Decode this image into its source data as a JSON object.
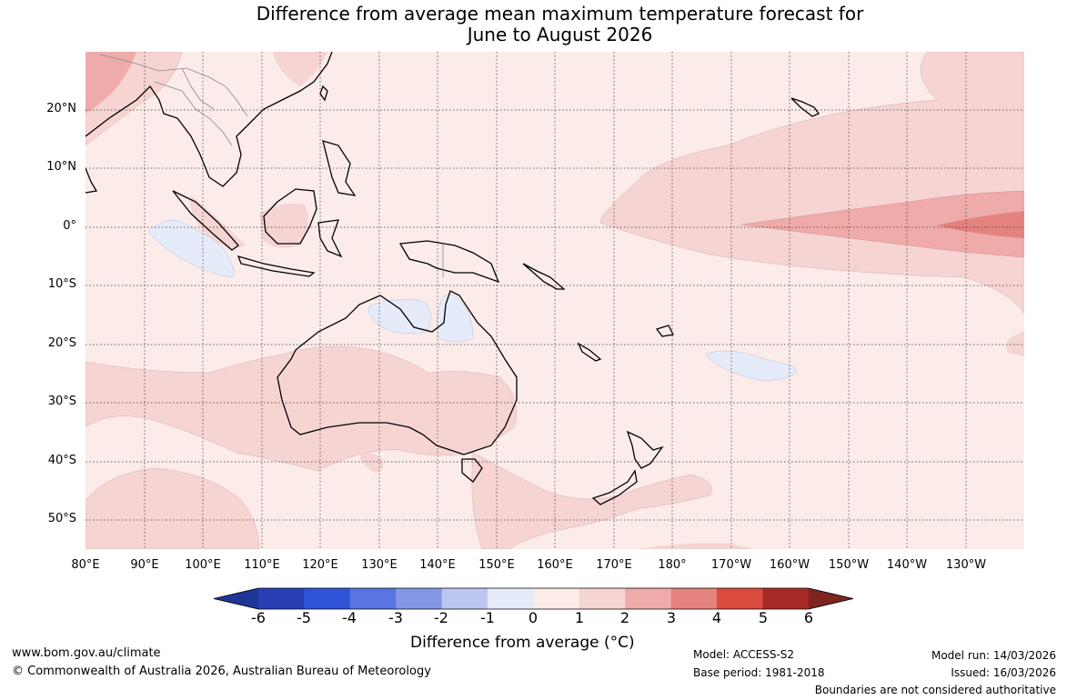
{
  "title": {
    "line1": "Difference from average mean maximum temperature forecast for",
    "line2": "June to August 2026"
  },
  "map": {
    "lat_labels": [
      "20°N",
      "10°N",
      "0°",
      "10°S",
      "20°S",
      "30°S",
      "40°S",
      "50°S"
    ],
    "lon_labels": [
      "80°E",
      "90°E",
      "100°E",
      "110°E",
      "120°E",
      "130°E",
      "140°E",
      "150°E",
      "160°E",
      "170°E",
      "180°",
      "170°W",
      "160°W",
      "150°W",
      "140°W",
      "130°W"
    ],
    "background_color": "#fbebe9"
  },
  "colorbar": {
    "ticks": [
      "-6",
      "-5",
      "-4",
      "-3",
      "-2",
      "-1",
      "0",
      "1",
      "2",
      "3",
      "4",
      "5",
      "6"
    ],
    "colors": [
      "#1f3697",
      "#283fb4",
      "#2f54d8",
      "#5a74e0",
      "#8496e6",
      "#bcc6f0",
      "#e6ebfa",
      "#fbebe9",
      "#f5d4d2",
      "#eeabaa",
      "#e4837e",
      "#db4b3e",
      "#a82a26",
      "#7e2520"
    ],
    "label": "Difference from average (°C)"
  },
  "footer": {
    "website": "www.bom.gov.au/climate",
    "copyright": "© Commonwealth of Australia 2026, Australian Bureau of Meteorology",
    "model": "Model: ACCESS-S2",
    "base_period": "Base period: 1981-2018",
    "model_run": "Model run: 14/03/2026",
    "issued": "Issued: 16/03/2026",
    "disclaimer": "Boundaries are not considered authoritative"
  }
}
